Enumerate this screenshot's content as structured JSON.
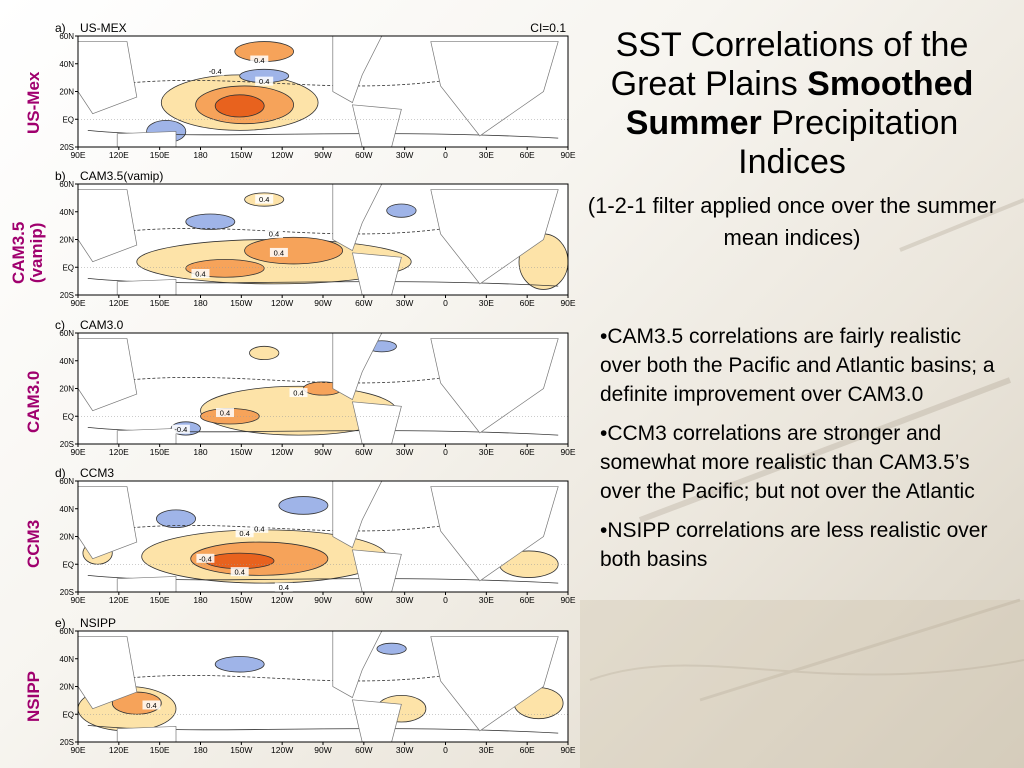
{
  "title": {
    "line1": "SST Correlations of the",
    "line2_plain": "Great Plains ",
    "line2_bold": "Smoothed",
    "line3_bold": "Summer",
    "line3_plain": " Precipitation",
    "line4": "Indices",
    "subtitle": "(1-2-1 filter applied once over the summer mean indices)"
  },
  "bullets": [
    "•CAM3.5 correlations are fairly realistic over both the Pacific and Atlantic basins; a definite improvement over CAM3.0",
    "•CCM3 correlations are stronger and somewhat more realistic than CAM3.5’s over the Pacific; but not over the Atlantic",
    "•NSIPP correlations are less realistic over both basins"
  ],
  "contour_interval": "CI=0.1",
  "lon_ticks": [
    "90E",
    "120E",
    "150E",
    "180",
    "150W",
    "120W",
    "90W",
    "60W",
    "30W",
    "0",
    "30E",
    "60E",
    "90E"
  ],
  "lat_ticks": [
    "60N",
    "40N",
    "20N",
    "EQ",
    "20S"
  ],
  "panels": [
    {
      "letter": "a)",
      "model": "US-MEX",
      "side_label": [
        "US-Mex"
      ],
      "contour_labels": [
        "-0.4",
        "0.4",
        "0.4"
      ]
    },
    {
      "letter": "b)",
      "model": "CAM3.5(vamip)",
      "side_label": [
        "CAM3.5",
        "(vamip)"
      ],
      "contour_labels": [
        "0.4",
        "0.4",
        "0.4",
        "0.4"
      ]
    },
    {
      "letter": "c)",
      "model": "CAM3.0",
      "side_label": [
        "CAM3.0"
      ],
      "contour_labels": [
        "0.4",
        "0.4",
        "-0.4"
      ]
    },
    {
      "letter": "d)",
      "model": "CCM3",
      "side_label": [
        "CCM3"
      ],
      "contour_labels": [
        "0.4",
        "0.4",
        "-0.4",
        "0.4",
        "0.4"
      ]
    },
    {
      "letter": "e)",
      "model": "NSIPP",
      "side_label": [
        "NSIPP"
      ],
      "contour_labels": [
        "0.4"
      ]
    }
  ],
  "colors": {
    "label": "#a0006e",
    "warm_light": "#fde3a8",
    "warm_mid": "#f6a35a",
    "warm_dark": "#e8621e",
    "cool": "#9fb4e8"
  }
}
